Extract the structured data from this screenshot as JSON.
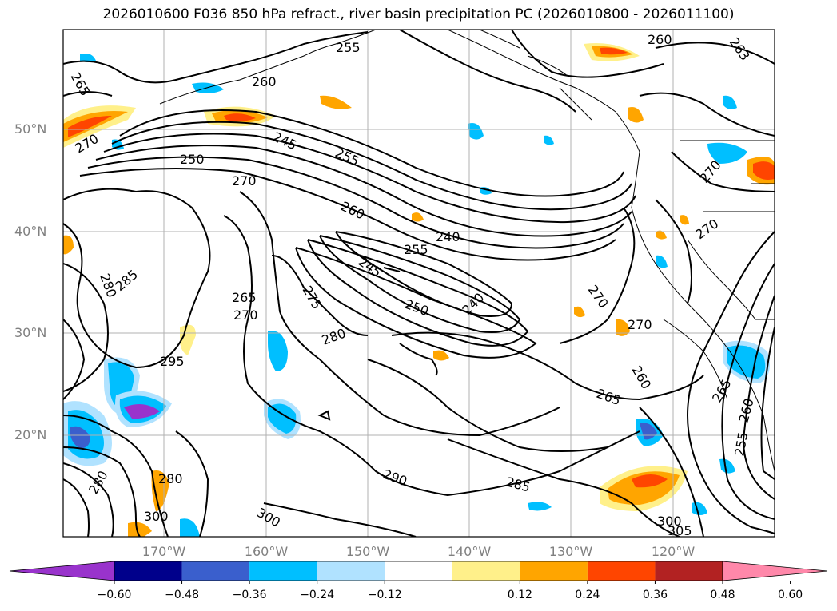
{
  "title": "2026010600 F036 850 hPa refract., river basin precipitation PC (2026010800 - 2026011100)",
  "map": {
    "lat_labels": [
      "50°N",
      "40°N",
      "30°N",
      "20°N"
    ],
    "lon_labels": [
      "170°W",
      "160°W",
      "150°W",
      "140°W",
      "130°W",
      "120°W"
    ],
    "lon_extent": [
      -177,
      -107
    ],
    "lat_extent": [
      10,
      60
    ],
    "gridlines": true,
    "contour_labels": [
      "265",
      "255",
      "260",
      "260",
      "263",
      "270",
      "245",
      "255",
      "250",
      "270",
      "260",
      "240",
      "255",
      "245",
      "280",
      "285",
      "265",
      "270",
      "275",
      "250",
      "240",
      "270",
      "270",
      "280",
      "295",
      "260",
      "265",
      "265",
      "260",
      "255",
      "290",
      "285",
      "280",
      "300",
      "300",
      "300",
      "305",
      "280",
      "270",
      "270"
    ]
  },
  "colorbar": {
    "ticks": [
      "−0.60",
      "−0.48",
      "−0.36",
      "−0.24",
      "−0.12",
      "0.12",
      "0.24",
      "0.36",
      "0.48",
      "0.60"
    ],
    "colors": [
      "#9933cc",
      "#00008b",
      "#3a5fcd",
      "#00bfff",
      "#b0e2ff",
      "#ffffff",
      "#fff08a",
      "#ffa500",
      "#ff4500",
      "#b22222",
      "#ff88aa"
    ]
  }
}
